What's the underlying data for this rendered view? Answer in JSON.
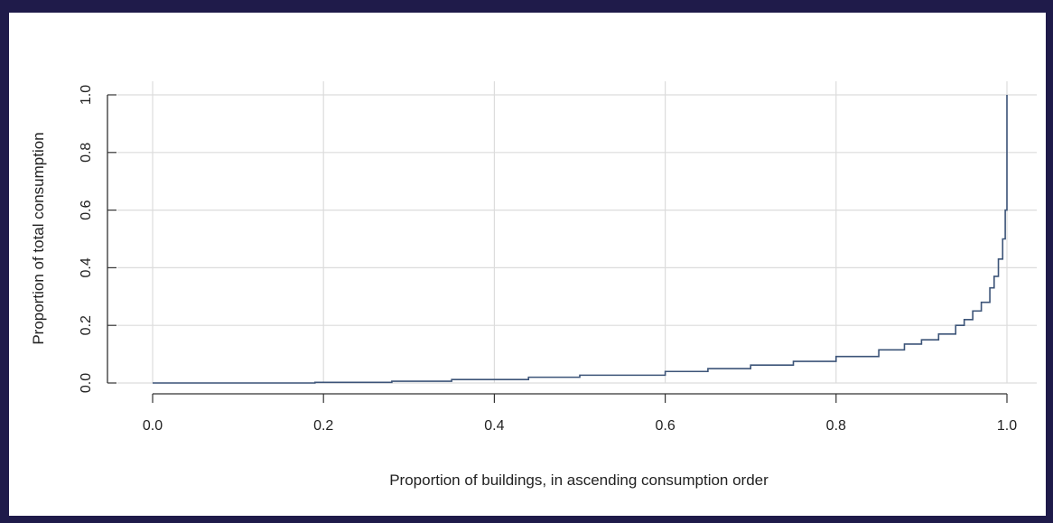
{
  "chart_data": {
    "type": "line",
    "title": "",
    "xlabel": "Proportion of buildings, in ascending consumption order",
    "ylabel": "Proportion of total consumption",
    "xlim": [
      0.0,
      1.0
    ],
    "ylim": [
      0.0,
      1.0
    ],
    "xticks": [
      "0.0",
      "0.2",
      "0.4",
      "0.6",
      "0.8",
      "1.0"
    ],
    "yticks": [
      "0.0",
      "0.2",
      "0.4",
      "0.6",
      "0.8",
      "1.0"
    ],
    "grid": true,
    "legend": "none",
    "line_color": "#3c5478",
    "grid_color": "#dcdcdc",
    "series": [
      {
        "x": [
          0.0,
          0.19,
          0.28,
          0.35,
          0.44,
          0.5,
          0.6,
          0.65,
          0.7,
          0.75,
          0.8,
          0.85,
          0.88,
          0.9,
          0.92,
          0.94,
          0.95,
          0.96,
          0.97,
          0.98,
          0.985,
          0.99,
          0.995,
          0.998,
          1.0,
          1.0
        ],
        "y": [
          0.0,
          0.002,
          0.006,
          0.012,
          0.02,
          0.027,
          0.04,
          0.05,
          0.062,
          0.075,
          0.092,
          0.115,
          0.135,
          0.15,
          0.17,
          0.2,
          0.22,
          0.25,
          0.28,
          0.33,
          0.37,
          0.43,
          0.5,
          0.6,
          0.72,
          1.0
        ]
      }
    ]
  }
}
